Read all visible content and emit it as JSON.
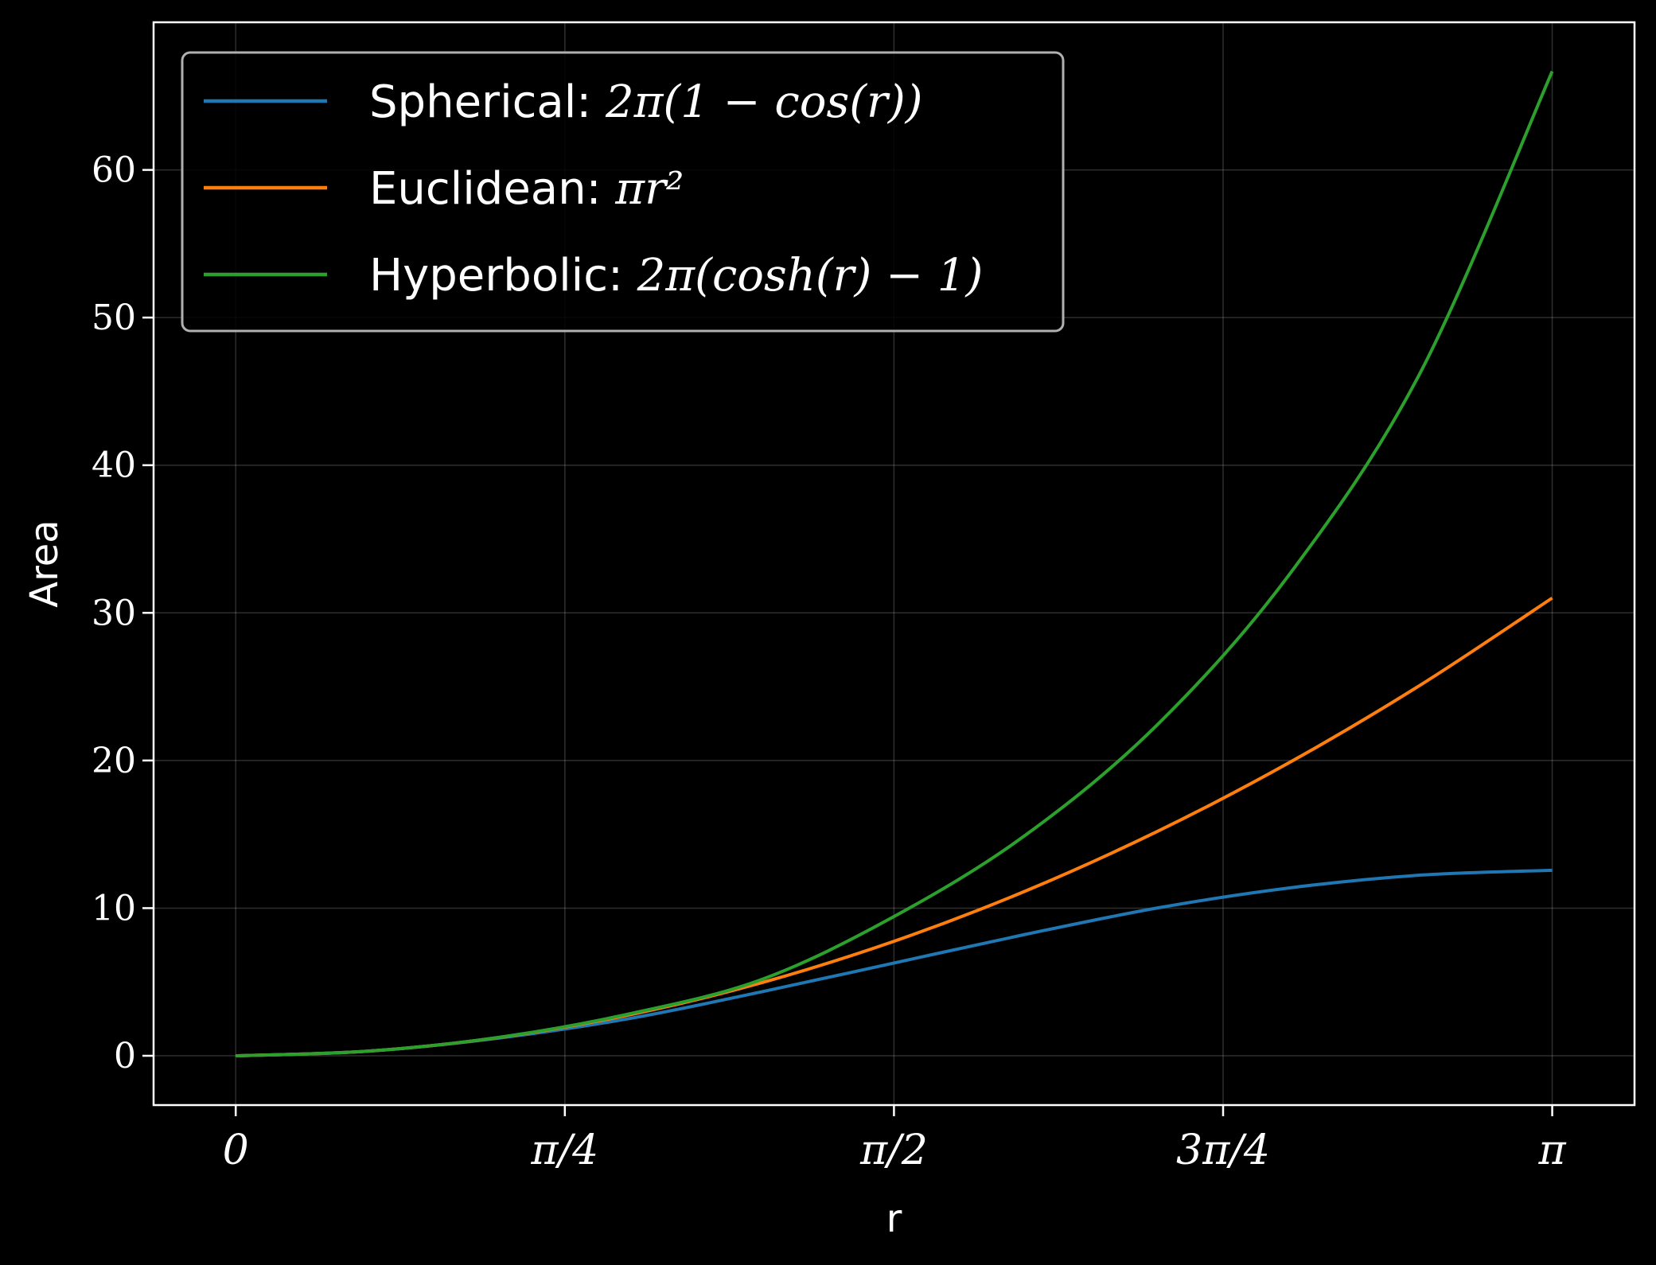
{
  "chart_data": {
    "type": "line",
    "xlabel": "r",
    "ylabel": "Area",
    "xlim": [
      -0.196,
      3.338
    ],
    "ylim": [
      -3.34,
      70.0
    ],
    "grid": true,
    "legend_position": "top-left",
    "x_ticks": [
      {
        "value": 0,
        "label": "0"
      },
      {
        "value": 0.7854,
        "label": "π/4"
      },
      {
        "value": 1.5708,
        "label": "π/2"
      },
      {
        "value": 2.3562,
        "label": "3π/4"
      },
      {
        "value": 3.1416,
        "label": "π"
      }
    ],
    "y_ticks": [
      {
        "value": 0,
        "label": "0"
      },
      {
        "value": 10,
        "label": "10"
      },
      {
        "value": 20,
        "label": "20"
      },
      {
        "value": 30,
        "label": "30"
      },
      {
        "value": 40,
        "label": "40"
      },
      {
        "value": 50,
        "label": "50"
      },
      {
        "value": 60,
        "label": "60"
      }
    ],
    "x": [
      0,
      0.3142,
      0.6283,
      0.9425,
      1.2566,
      1.5708,
      1.885,
      2.1991,
      2.5133,
      2.8274,
      3.1416
    ],
    "series": [
      {
        "name": "Spherical: ",
        "formula": "2π(1 − cos(r))",
        "color": "#1f77b4",
        "values": [
          0,
          0.3097,
          1.1995,
          2.5364,
          4.3415,
          6.2832,
          8.2248,
          10.0099,
          11.3669,
          12.2389,
          12.5664
        ]
      },
      {
        "name": "Euclidean: ",
        "formula": "πr²",
        "color": "#ff7f0e",
        "values": [
          0,
          0.3101,
          1.2402,
          2.7906,
          4.961,
          7.7516,
          11.1623,
          15.1932,
          19.8441,
          25.1151,
          31.0063
        ]
      },
      {
        "name": "Hyperbolic: ",
        "formula": "2π(cosh(r) − 1)",
        "color": "#2ca02c",
        "values": [
          0,
          0.3105,
          1.2512,
          2.8596,
          5.1834,
          9.4285,
          14.9519,
          22.4166,
          32.5604,
          46.3004,
          66.6747
        ]
      }
    ]
  }
}
